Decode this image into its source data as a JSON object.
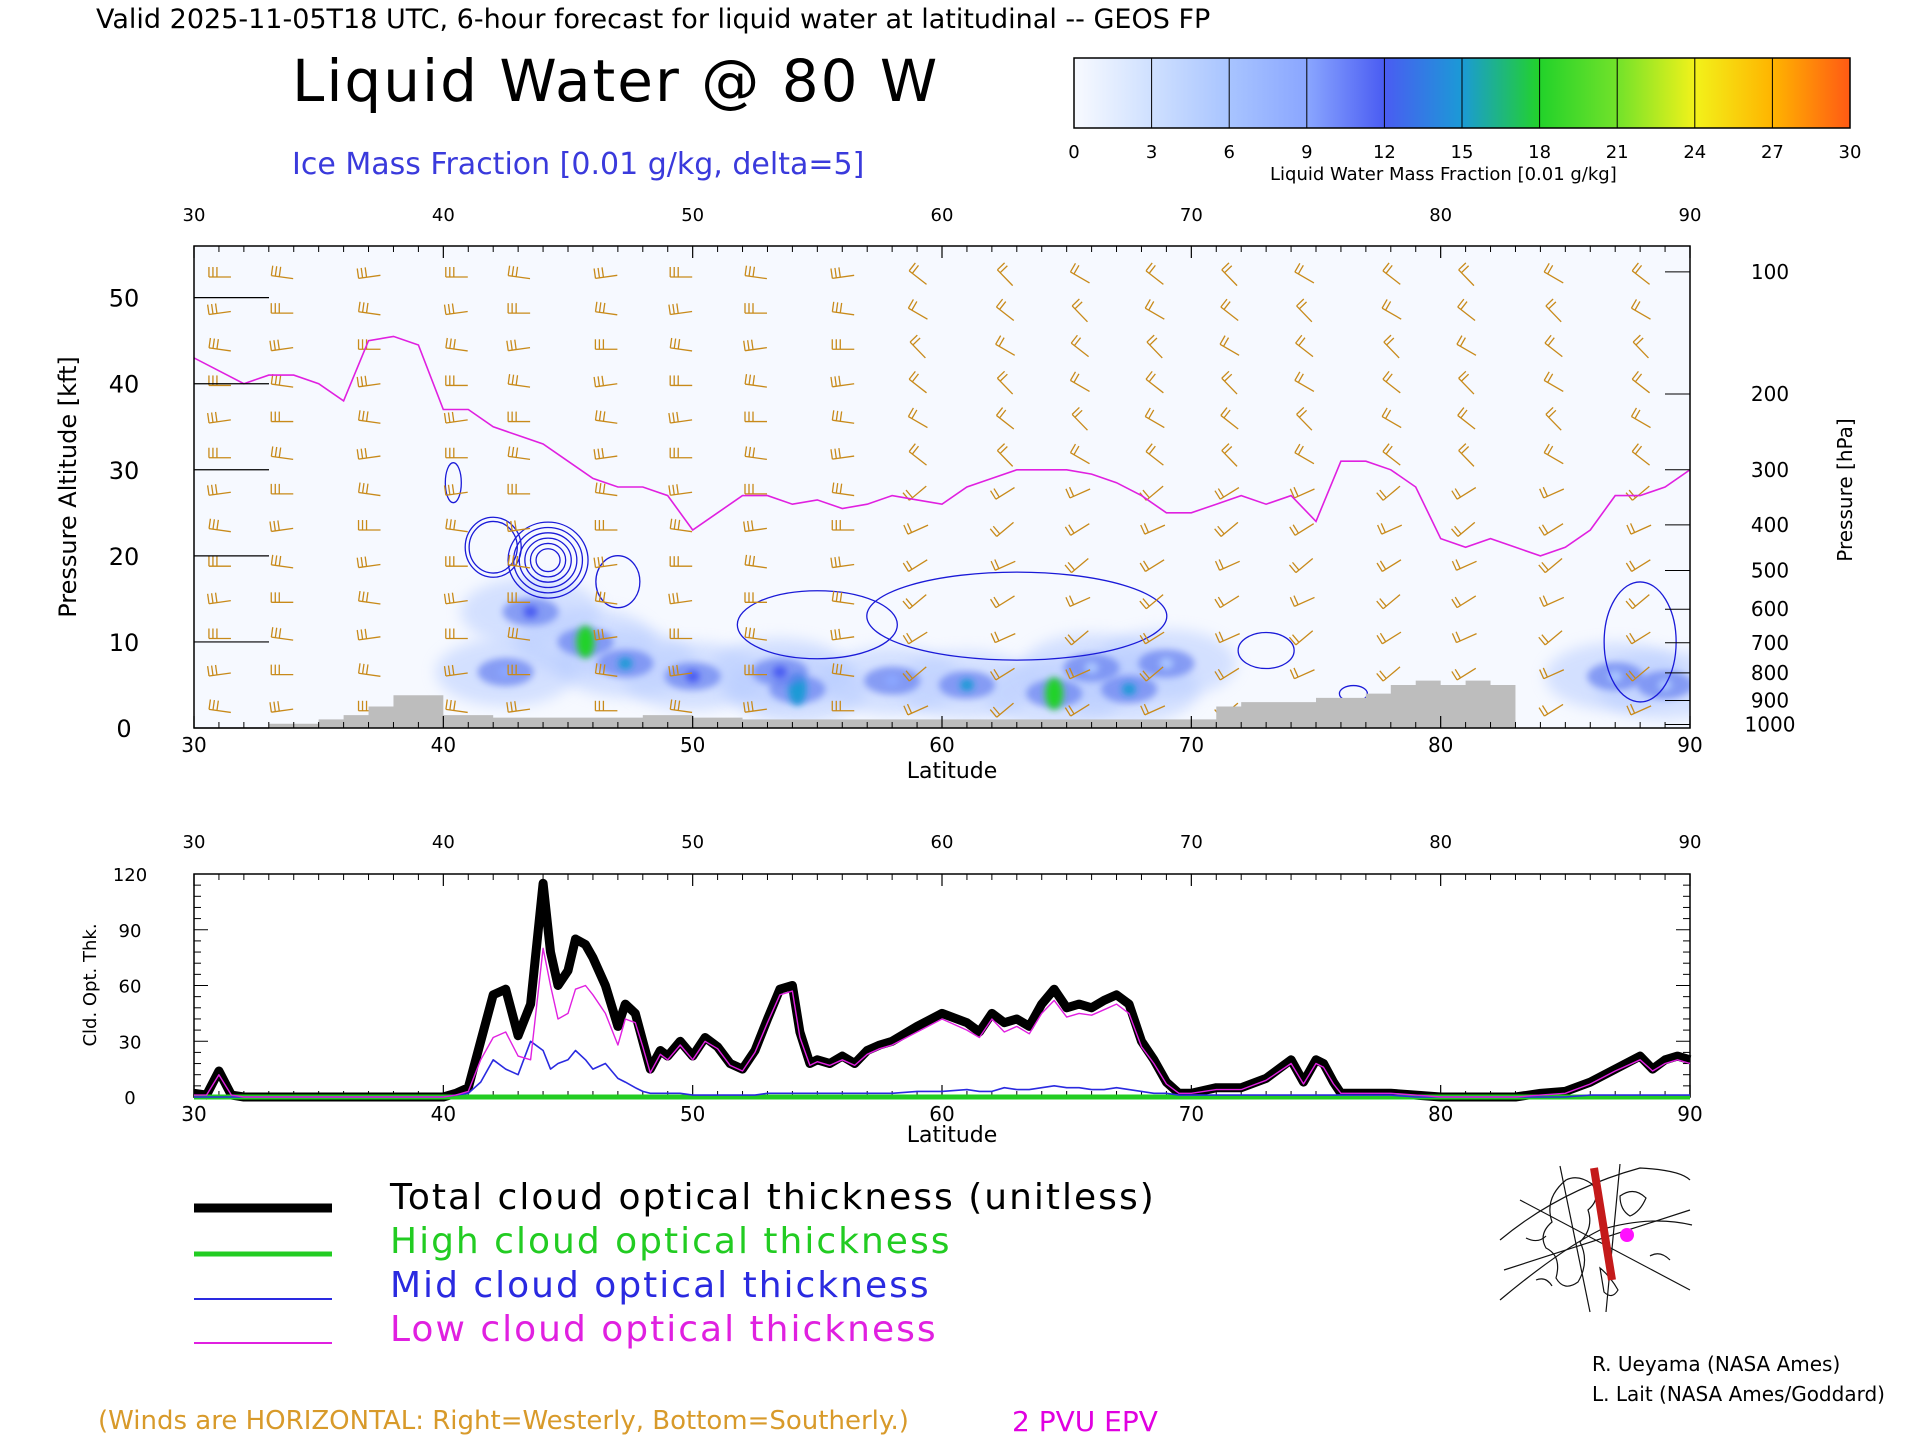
{
  "header": {
    "line": "Valid 2025-11-05T18 UTC, 6-hour forecast for liquid water at latitudinal -- GEOS FP",
    "title": "Liquid Water @ 80 W",
    "ice_subtitle": "Ice Mass Fraction [0.01 g/kg, delta=5]"
  },
  "colorbar": {
    "label": "Liquid Water Mass Fraction [0.01 g/kg]",
    "ticks": [
      "0",
      "3",
      "6",
      "9",
      "12",
      "15",
      "18",
      "21",
      "24",
      "27",
      "30"
    ],
    "colors": [
      "#f8faff",
      "#cfe0ff",
      "#a8c4ff",
      "#8aa6ff",
      "#4a5cf2",
      "#1b9ad6",
      "#22d22a",
      "#72e22a",
      "#f2f21a",
      "#ffb400",
      "#ff5a14"
    ]
  },
  "chart_data": [
    {
      "type": "heatmap",
      "title": "Liquid Water @ 80 W",
      "xlabel": "Latitude",
      "ylabel": "Pressure Altitude [kft]",
      "y2label": "Pressure [hPa]",
      "xlim": [
        30,
        90
      ],
      "ylim": [
        0,
        56
      ],
      "x_ticks": [
        "30",
        "40",
        "50",
        "60",
        "70",
        "80",
        "90"
      ],
      "y_ticks": [
        "0",
        "10",
        "20",
        "30",
        "40",
        "50"
      ],
      "pressure_ticks": [
        "100",
        "200",
        "300",
        "400",
        "500",
        "600",
        "700",
        "800",
        "900",
        "1000"
      ],
      "pressure_tick_kft": [
        53,
        38.8,
        30,
        23.6,
        18.3,
        13.8,
        9.9,
        6.4,
        3.2,
        0.4
      ],
      "liquid_blobs": [
        {
          "lat": 45.7,
          "alt": 10.0,
          "value": 18
        },
        {
          "lat": 47.3,
          "alt": 7.5,
          "value": 14
        },
        {
          "lat": 43.5,
          "alt": 13.5,
          "value": 11
        },
        {
          "lat": 42.5,
          "alt": 6.5,
          "value": 8
        },
        {
          "lat": 50.0,
          "alt": 6.0,
          "value": 12
        },
        {
          "lat": 54.2,
          "alt": 4.5,
          "value": 16
        },
        {
          "lat": 53.5,
          "alt": 6.5,
          "value": 12
        },
        {
          "lat": 58.0,
          "alt": 5.5,
          "value": 9
        },
        {
          "lat": 61.0,
          "alt": 5.0,
          "value": 14
        },
        {
          "lat": 64.5,
          "alt": 4.0,
          "value": 17
        },
        {
          "lat": 67.5,
          "alt": 4.5,
          "value": 14
        },
        {
          "lat": 66.0,
          "alt": 7.0,
          "value": 7
        },
        {
          "lat": 69.0,
          "alt": 7.5,
          "value": 5
        },
        {
          "lat": 87.0,
          "alt": 6.0,
          "value": 5
        },
        {
          "lat": 89.0,
          "alt": 5.0,
          "value": 6
        }
      ],
      "epv_2pvu_line": {
        "lat": [
          30,
          32,
          33,
          34,
          35,
          36,
          37,
          38,
          39,
          40,
          41,
          42,
          43,
          44,
          45,
          46,
          47,
          48,
          49,
          50,
          51,
          52,
          53,
          54,
          55,
          56,
          57,
          58,
          59,
          60,
          61,
          62,
          63,
          64,
          65,
          66,
          67,
          68,
          69,
          70,
          71,
          72,
          73,
          74,
          75,
          76,
          77,
          78,
          79,
          80,
          81,
          82,
          83,
          84,
          85,
          86,
          87,
          88,
          89,
          90
        ],
        "kft": [
          43,
          40,
          41,
          41,
          40,
          38,
          45,
          45.5,
          44.5,
          37,
          37,
          35,
          34,
          33,
          31,
          29,
          28,
          28,
          27,
          23,
          25,
          27,
          27,
          26,
          26.5,
          25.5,
          26,
          27,
          26.5,
          26,
          28,
          29,
          30,
          30,
          30,
          29.5,
          28.5,
          27,
          25,
          25,
          26,
          27,
          26,
          27,
          24,
          31,
          31,
          30,
          28,
          22,
          21,
          22,
          21,
          20,
          21,
          23,
          27,
          27,
          28,
          30
        ]
      },
      "terrain": {
        "lat": [
          33,
          35,
          36,
          37,
          38,
          39,
          40,
          42,
          44,
          46,
          48,
          50,
          52,
          54,
          56,
          58,
          60,
          62,
          64,
          66,
          68,
          70,
          71,
          72,
          73,
          74,
          75,
          76,
          77,
          78,
          79,
          80,
          81,
          82,
          83
        ],
        "kft": [
          0.5,
          1.0,
          1.5,
          2.5,
          3.8,
          3.8,
          1.5,
          1.2,
          1.2,
          1.2,
          1.5,
          1.2,
          1.0,
          1.0,
          1.0,
          1.0,
          1.0,
          1.0,
          1.0,
          1.0,
          1.0,
          1.0,
          2.5,
          3.0,
          3.0,
          3.0,
          3.5,
          3.5,
          4.0,
          5.0,
          5.5,
          5.0,
          5.5,
          5.0,
          3.0
        ]
      },
      "wind_barbs_columns_lat": [
        31,
        33.5,
        37,
        40.5,
        43,
        46.5,
        49.5,
        52.5,
        56,
        59,
        62.5,
        65.5,
        68.5,
        71.5,
        74.5,
        78,
        81,
        84.5,
        88
      ]
    },
    {
      "type": "line",
      "xlabel": "Latitude",
      "ylabel": "Cld. Opt. Thk.",
      "xlim": [
        30,
        90
      ],
      "ylim": [
        0,
        120
      ],
      "x_ticks": [
        "30",
        "40",
        "50",
        "60",
        "70",
        "80",
        "90"
      ],
      "y_ticks": [
        "0",
        "30",
        "60",
        "90",
        "120"
      ],
      "x": [
        30,
        30.5,
        31,
        31.5,
        32,
        33,
        35,
        38,
        40,
        40.5,
        41,
        41.5,
        42,
        42.5,
        43,
        43.5,
        44,
        44.3,
        44.6,
        45,
        45.3,
        45.7,
        46,
        46.5,
        47,
        47.3,
        47.7,
        48,
        48.3,
        48.7,
        49,
        49.5,
        50,
        50.5,
        51,
        51.5,
        52,
        52.5,
        53,
        53.5,
        54,
        54.3,
        54.7,
        55,
        55.5,
        56,
        56.5,
        57,
        57.5,
        58,
        59,
        60,
        61,
        61.5,
        62,
        62.5,
        63,
        63.5,
        64,
        64.5,
        65,
        65.5,
        66,
        66.5,
        67,
        67.5,
        68,
        68.5,
        69,
        69.5,
        70,
        71,
        72,
        73,
        74,
        74.5,
        75,
        75.3,
        75.7,
        76,
        76.5,
        77,
        78,
        79,
        80,
        81,
        82,
        83,
        84,
        85,
        86,
        87,
        88,
        88.5,
        89,
        89.5,
        90
      ],
      "series": [
        {
          "name": "Total cloud optical thickness (unitless)",
          "color": "#000000",
          "values": [
            2,
            1,
            14,
            1,
            0,
            0,
            0,
            0,
            0,
            2,
            5,
            30,
            55,
            58,
            33,
            50,
            115,
            78,
            60,
            68,
            85,
            82,
            75,
            60,
            38,
            50,
            45,
            30,
            15,
            25,
            22,
            30,
            22,
            32,
            27,
            18,
            15,
            25,
            42,
            58,
            60,
            35,
            18,
            20,
            18,
            22,
            18,
            25,
            28,
            30,
            38,
            45,
            40,
            35,
            45,
            40,
            42,
            38,
            50,
            58,
            48,
            50,
            48,
            52,
            55,
            50,
            30,
            20,
            8,
            2,
            2,
            5,
            5,
            10,
            20,
            8,
            20,
            18,
            8,
            2,
            2,
            2,
            2,
            1,
            0,
            0,
            0,
            0,
            2,
            3,
            8,
            15,
            22,
            15,
            20,
            22,
            20
          ]
        },
        {
          "name": "High cloud optical thickness",
          "color": "#22cc22",
          "values": [
            0,
            0,
            0,
            0,
            0,
            0,
            0,
            0,
            0,
            0,
            0,
            0,
            0,
            0,
            0,
            0,
            0,
            0,
            0,
            0,
            0,
            0,
            0,
            0,
            0,
            0,
            0,
            0,
            0,
            0,
            0,
            0,
            0,
            0,
            0,
            0,
            0,
            0,
            0,
            0,
            0,
            0,
            0,
            0,
            0,
            0,
            0,
            0,
            0,
            0,
            0,
            0,
            0,
            0,
            0,
            0,
            0,
            0,
            0,
            0,
            0,
            0,
            0,
            0,
            0,
            0,
            0,
            0,
            0,
            0,
            0,
            0,
            0,
            0,
            0,
            0,
            0,
            0,
            0,
            0,
            0,
            0,
            0,
            0,
            0,
            0,
            0,
            0,
            0,
            0,
            0,
            0,
            0,
            0,
            0,
            0,
            0
          ]
        },
        {
          "name": "Mid cloud optical thickness",
          "color": "#2a2ae0",
          "values": [
            0,
            0,
            0,
            0,
            0,
            0,
            0,
            0,
            0,
            1,
            2,
            8,
            20,
            15,
            12,
            30,
            25,
            15,
            18,
            20,
            25,
            20,
            15,
            18,
            10,
            8,
            5,
            3,
            2,
            2,
            2,
            2,
            1,
            1,
            1,
            1,
            1,
            1,
            2,
            2,
            2,
            2,
            2,
            2,
            2,
            2,
            2,
            2,
            2,
            2,
            3,
            3,
            4,
            3,
            3,
            5,
            4,
            4,
            5,
            6,
            5,
            5,
            4,
            4,
            5,
            4,
            3,
            2,
            2,
            1,
            1,
            1,
            1,
            1,
            1,
            1,
            1,
            1,
            1,
            1,
            1,
            1,
            1,
            0,
            0,
            0,
            0,
            0,
            0,
            0,
            1,
            1,
            1,
            1,
            1,
            1,
            1
          ]
        },
        {
          "name": "Low cloud optical thickness",
          "color": "#e020e0",
          "values": [
            1,
            1,
            12,
            1,
            0,
            0,
            0,
            0,
            0,
            1,
            3,
            20,
            32,
            35,
            22,
            20,
            80,
            60,
            42,
            45,
            58,
            60,
            55,
            45,
            28,
            42,
            40,
            27,
            13,
            23,
            20,
            28,
            20,
            30,
            26,
            17,
            14,
            24,
            40,
            55,
            57,
            32,
            17,
            19,
            17,
            20,
            17,
            23,
            26,
            28,
            35,
            42,
            36,
            32,
            42,
            35,
            38,
            34,
            45,
            52,
            43,
            45,
            44,
            47,
            50,
            45,
            27,
            18,
            7,
            2,
            2,
            4,
            4,
            9,
            18,
            7,
            18,
            16,
            7,
            2,
            2,
            2,
            2,
            1,
            0,
            0,
            0,
            0,
            1,
            2,
            7,
            14,
            20,
            14,
            18,
            20,
            18
          ]
        }
      ]
    }
  ],
  "legend": {
    "total": "Total cloud optical thickness (unitless)",
    "high": "High cloud optical thickness",
    "mid": "Mid cloud optical thickness",
    "low": "Low cloud optical thickness"
  },
  "credits": {
    "line1": "R. Ueyama (NASA Ames)",
    "line2": "L. Lait (NASA Ames/Goddard)"
  },
  "notes": {
    "winds": "(Winds are HORIZONTAL: Right=Westerly, Bottom=Southerly.)",
    "epv": "2 PVU EPV"
  }
}
